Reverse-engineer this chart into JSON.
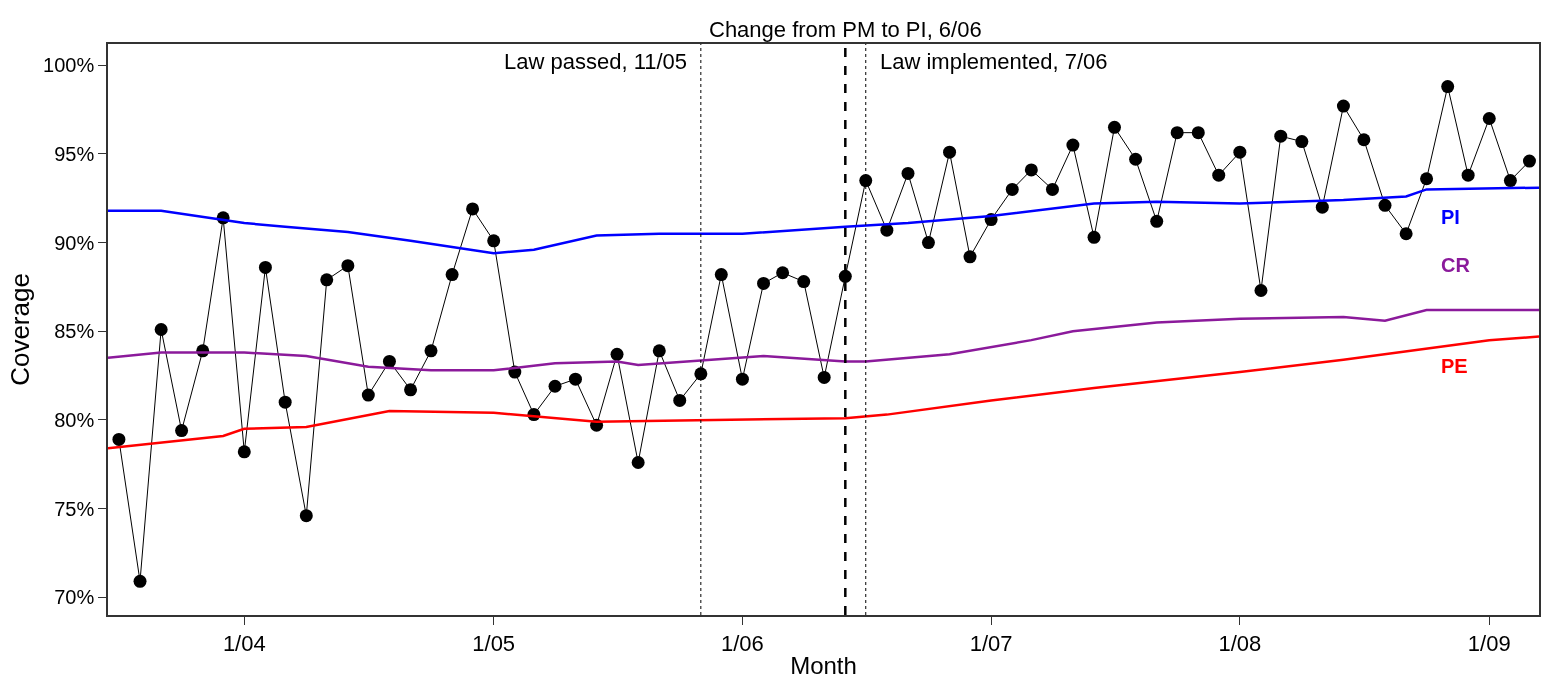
{
  "chart_data": {
    "type": "line",
    "xlabel": "Month",
    "ylabel": "Coverage",
    "xlim": [
      "2003-06-15",
      "2009-03-15"
    ],
    "ylim": [
      69,
      101.2
    ],
    "xticks": [
      {
        "value": "2004-01",
        "label": "1/04"
      },
      {
        "value": "2005-01",
        "label": "1/05"
      },
      {
        "value": "2006-01",
        "label": "1/06"
      },
      {
        "value": "2007-01",
        "label": "1/07"
      },
      {
        "value": "2008-01",
        "label": "1/08"
      },
      {
        "value": "2009-01",
        "label": "1/09"
      }
    ],
    "yticks": [
      {
        "value": 70,
        "label": "70%"
      },
      {
        "value": 75,
        "label": "75%"
      },
      {
        "value": 80,
        "label": "80%"
      },
      {
        "value": 85,
        "label": "85%"
      },
      {
        "value": 90,
        "label": "90%"
      },
      {
        "value": 95,
        "label": "95%"
      },
      {
        "value": 100,
        "label": "100%"
      }
    ],
    "grid": false,
    "legend": false,
    "series": [
      {
        "color": "#000000",
        "marker": "circle",
        "x": [
          "2003-07",
          "2003-08",
          "2003-09",
          "2003-10",
          "2003-11",
          "2003-12",
          "2004-01",
          "2004-02",
          "2004-03",
          "2004-04",
          "2004-05",
          "2004-06",
          "2004-07",
          "2004-08",
          "2004-09",
          "2004-10",
          "2004-11",
          "2004-12",
          "2005-01",
          "2005-02",
          "2005-03",
          "2005-04",
          "2005-05",
          "2005-06",
          "2005-07",
          "2005-08",
          "2005-09",
          "2005-10",
          "2005-11",
          "2005-12",
          "2006-01",
          "2006-02",
          "2006-03",
          "2006-04",
          "2006-05",
          "2006-06",
          "2006-07",
          "2006-08",
          "2006-09",
          "2006-10",
          "2006-11",
          "2006-12",
          "2007-01",
          "2007-02",
          "2007-03",
          "2007-04",
          "2007-05",
          "2007-06",
          "2007-07",
          "2007-08",
          "2007-09",
          "2007-10",
          "2007-11",
          "2007-12",
          "2008-01",
          "2008-02",
          "2008-03",
          "2008-04",
          "2008-05",
          "2008-06",
          "2008-07",
          "2008-08",
          "2008-09",
          "2008-10",
          "2008-11",
          "2008-12",
          "2009-01",
          "2009-02",
          "2009-03"
        ],
        "values": [
          78.9,
          70.9,
          85.1,
          79.4,
          83.9,
          91.4,
          78.2,
          88.6,
          81.0,
          74.6,
          87.9,
          88.7,
          81.4,
          83.3,
          81.7,
          83.9,
          88.2,
          91.9,
          90.1,
          82.7,
          80.3,
          81.9,
          82.3,
          79.7,
          83.7,
          77.6,
          83.9,
          81.1,
          82.6,
          88.2,
          82.3,
          87.7,
          88.3,
          87.8,
          82.4,
          88.1,
          93.5,
          90.7,
          93.9,
          90.0,
          95.1,
          89.2,
          91.3,
          93.0,
          94.1,
          93.0,
          95.5,
          90.3,
          96.5,
          94.7,
          91.2,
          96.2,
          96.2,
          93.8,
          95.1,
          87.3,
          96.0,
          95.7,
          92.0,
          97.7,
          95.8,
          92.1,
          90.5,
          93.6,
          98.8,
          93.8,
          97.0,
          93.5,
          94.6
        ]
      },
      {
        "name": "PI",
        "color": "#0000ff",
        "x": [
          "2003-06-15",
          "2003-09",
          "2004-01",
          "2004-03",
          "2004-06",
          "2004-09",
          "2005-01",
          "2005-03",
          "2005-06",
          "2005-09",
          "2006-01",
          "2006-06",
          "2006-09",
          "2007-01",
          "2007-06",
          "2007-09",
          "2008-01",
          "2008-06",
          "2008-09",
          "2008-10",
          "2009-03-15"
        ],
        "values": [
          91.8,
          91.8,
          91.1,
          90.9,
          90.6,
          90.1,
          89.4,
          89.6,
          90.4,
          90.5,
          90.5,
          90.9,
          91.1,
          91.5,
          92.2,
          92.3,
          92.2,
          92.4,
          92.6,
          93.0,
          93.1
        ]
      },
      {
        "name": "CR",
        "color": "#8b1a9b",
        "x": [
          "2003-06-15",
          "2003-09",
          "2004-01",
          "2004-04",
          "2004-07",
          "2004-10",
          "2005-01",
          "2005-04",
          "2005-07",
          "2005-08",
          "2006-02",
          "2006-06",
          "2006-07",
          "2006-11",
          "2007-03",
          "2007-05",
          "2007-09",
          "2008-01",
          "2008-06",
          "2008-08",
          "2008-10",
          "2009-03-15"
        ],
        "values": [
          83.5,
          83.8,
          83.8,
          83.6,
          83.0,
          82.8,
          82.8,
          83.2,
          83.3,
          83.1,
          83.6,
          83.3,
          83.3,
          83.7,
          84.5,
          85.0,
          85.5,
          85.7,
          85.8,
          85.6,
          86.2,
          86.2
        ]
      },
      {
        "name": "PE",
        "color": "#ff0000",
        "x": [
          "2003-06-15",
          "2003-12",
          "2004-01",
          "2004-04",
          "2004-08",
          "2005-01",
          "2005-06",
          "2006-06",
          "2006-08",
          "2007-01",
          "2007-06",
          "2008-01",
          "2008-06",
          "2009-01",
          "2009-03-15"
        ],
        "values": [
          78.4,
          79.1,
          79.5,
          79.6,
          80.5,
          80.4,
          79.9,
          80.1,
          80.3,
          81.1,
          81.8,
          82.7,
          83.4,
          84.5,
          84.7
        ]
      }
    ],
    "ref_lines": [
      {
        "axis": "x",
        "value": "2005-11",
        "label": "Law passed, 11/05",
        "line_style": "dotted",
        "color": "#000000"
      },
      {
        "axis": "x",
        "value": "2006-06",
        "label": "Change from PM to PI, 6/06",
        "line_style": "dashed",
        "color": "#000000"
      },
      {
        "axis": "x",
        "value": "2006-07",
        "label": "Law implemented, 7/06",
        "line_style": "dotted",
        "color": "#000000"
      }
    ]
  }
}
